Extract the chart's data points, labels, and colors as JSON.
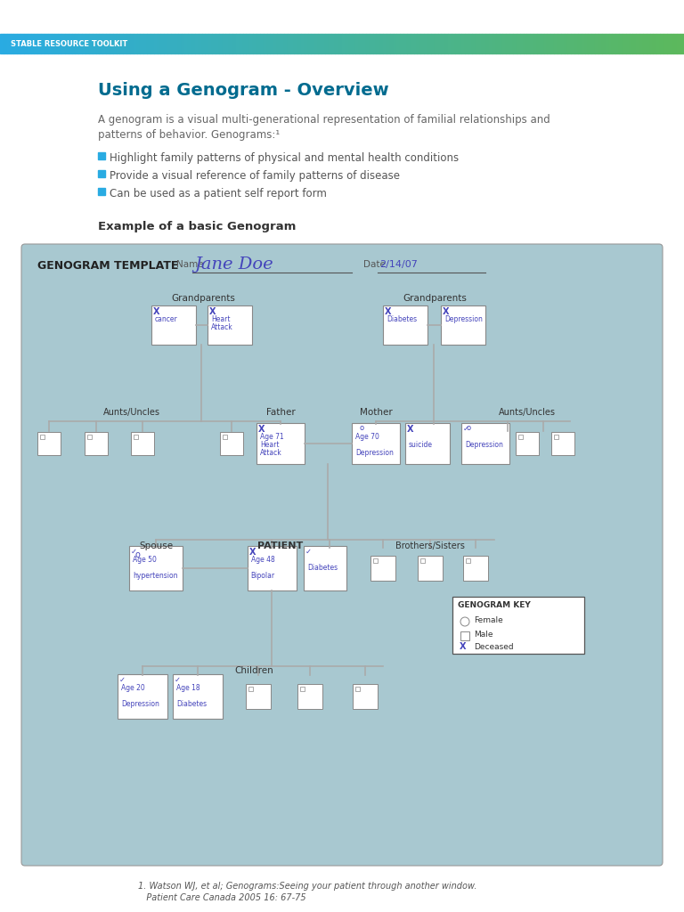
{
  "header_text": "STABLE RESOURCE TOOLKIT",
  "header_color_left": "#29ABE2",
  "header_color_right": "#5CB85C",
  "title": "Using a Genogram - Overview",
  "title_color": "#006B8F",
  "body_text1": "A genogram is a visual multi-generational representation of familial relationships and",
  "body_text2": "patterns of behavior. Genograms:¹",
  "bullet_color": "#29ABE2",
  "bullets": [
    "Highlight family patterns of physical and mental health conditions",
    "Provide a visual reference of family patterns of disease",
    "Can be used as a patient self report form"
  ],
  "section_title": "Example of a basic Genogram",
  "genogram_bg": "#A8C8D0",
  "genogram_title": "GENOGRAM TEMPLATE",
  "name_label": "Name",
  "name_value": "Jane Doe",
  "date_label": "Date",
  "date_value": "2/14/07",
  "name_color": "#4444BB",
  "footnote1": "1. Watson WJ, et al; Genograms:Seeing your patient through another window.",
  "footnote2": "   Patient Care Canada 2005 16: 67-75"
}
